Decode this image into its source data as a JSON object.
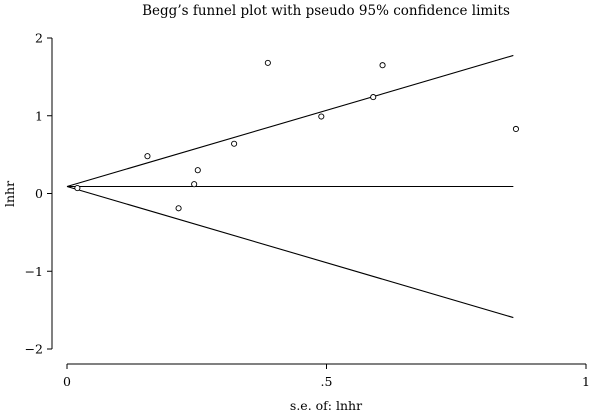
{
  "chart_data": {
    "type": "scatter",
    "title": "Begg’s funnel plot with pseudo 95% confidence limits",
    "xlabel": "s.e. of: lnhr",
    "ylabel": "lnhr",
    "xlim": [
      0,
      1
    ],
    "ylim": [
      -2,
      2
    ],
    "x_ticks": [
      0,
      0.5,
      1
    ],
    "x_tick_labels": [
      "0",
      ".5",
      "1"
    ],
    "y_ticks": [
      2,
      1,
      0,
      -1,
      -2
    ],
    "y_tick_labels": [
      "2",
      "1",
      "0",
      "−1",
      "−2"
    ],
    "grid": false,
    "pooled_estimate": 0.09,
    "line_extent_x": 0.86,
    "series": [
      {
        "points": [
          {
            "x": 0.02,
            "y": 0.07
          },
          {
            "x": 0.155,
            "y": 0.48
          },
          {
            "x": 0.215,
            "y": -0.19
          },
          {
            "x": 0.245,
            "y": 0.12
          },
          {
            "x": 0.252,
            "y": 0.3
          },
          {
            "x": 0.322,
            "y": 0.64
          },
          {
            "x": 0.387,
            "y": 1.68
          },
          {
            "x": 0.49,
            "y": 0.99
          },
          {
            "x": 0.59,
            "y": 1.24
          },
          {
            "x": 0.608,
            "y": 1.65
          },
          {
            "x": 0.865,
            "y": 0.83
          }
        ]
      }
    ]
  }
}
